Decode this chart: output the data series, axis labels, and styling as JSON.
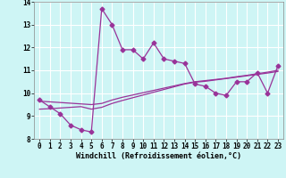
{
  "title": "",
  "xlabel": "Windchill (Refroidissement éolien,°C)",
  "ylabel": "",
  "background_color": "#cef5f5",
  "plot_bg_color": "#cef5f5",
  "grid_color": "#ffffff",
  "line_color": "#993399",
  "x": [
    0,
    1,
    2,
    3,
    4,
    5,
    6,
    7,
    8,
    9,
    10,
    11,
    12,
    13,
    14,
    15,
    16,
    17,
    18,
    19,
    20,
    21,
    22,
    23
  ],
  "y_main": [
    9.7,
    9.4,
    9.1,
    8.6,
    8.4,
    8.3,
    13.7,
    13.0,
    11.9,
    11.9,
    11.5,
    12.2,
    11.5,
    11.4,
    11.3,
    10.4,
    10.3,
    10.0,
    9.9,
    10.5,
    10.5,
    10.9,
    10.0,
    11.2
  ],
  "y_trend1": [
    9.65,
    9.62,
    9.59,
    9.56,
    9.53,
    9.5,
    9.55,
    9.7,
    9.82,
    9.92,
    10.02,
    10.12,
    10.22,
    10.32,
    10.42,
    10.5,
    10.55,
    10.6,
    10.65,
    10.72,
    10.78,
    10.85,
    10.92,
    11.0
  ],
  "y_trend2": [
    9.3,
    9.32,
    9.35,
    9.38,
    9.41,
    9.3,
    9.38,
    9.55,
    9.68,
    9.8,
    9.92,
    10.04,
    10.16,
    10.28,
    10.4,
    10.48,
    10.52,
    10.58,
    10.64,
    10.7,
    10.76,
    10.82,
    10.88,
    10.95
  ],
  "ylim": [
    8.0,
    14.0
  ],
  "xlim": [
    -0.5,
    23.5
  ],
  "yticks": [
    8,
    9,
    10,
    11,
    12,
    13,
    14
  ],
  "xticks": [
    0,
    1,
    2,
    3,
    4,
    5,
    6,
    7,
    8,
    9,
    10,
    11,
    12,
    13,
    14,
    15,
    16,
    17,
    18,
    19,
    20,
    21,
    22,
    23
  ],
  "xlabel_fontsize": 6,
  "tick_fontsize": 5.5,
  "marker_size": 2.5,
  "line_width": 0.9
}
